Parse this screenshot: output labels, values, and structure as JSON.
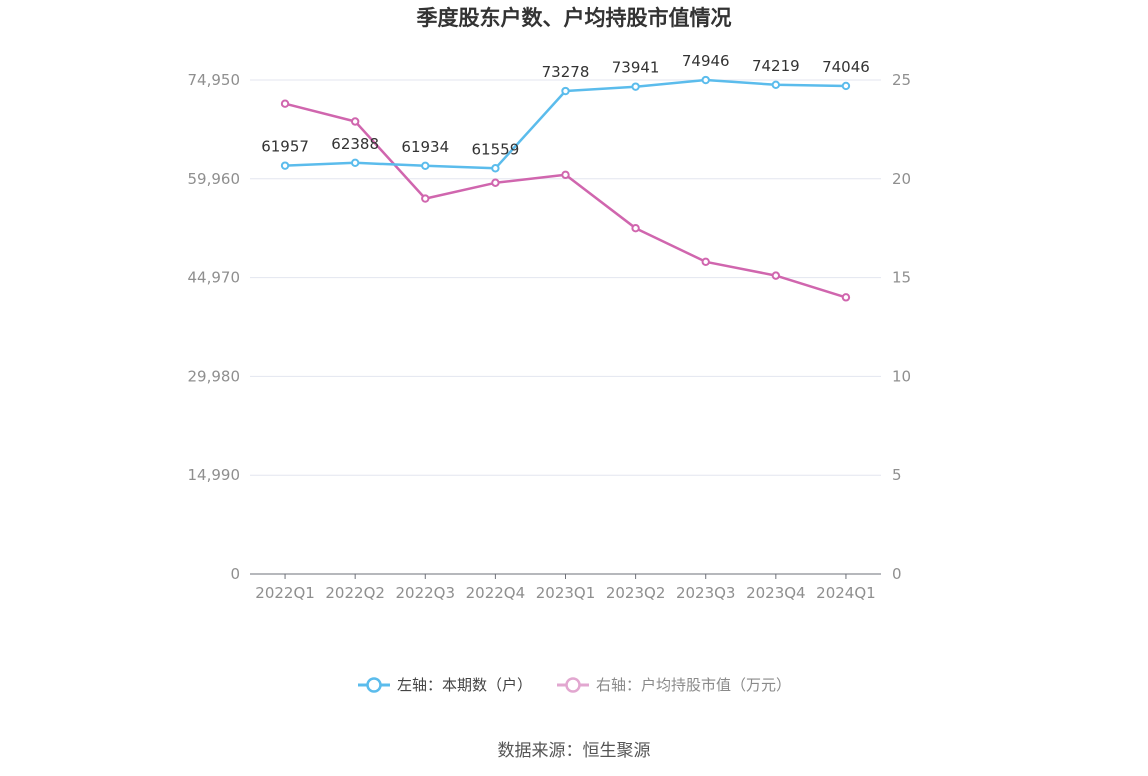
{
  "chart_data": {
    "type": "line",
    "title": "季度股东户数、户均持股市值情况",
    "categories": [
      "2022Q1",
      "2022Q2",
      "2022Q3",
      "2022Q4",
      "2023Q1",
      "2023Q2",
      "2023Q3",
      "2023Q4",
      "2024Q1"
    ],
    "series": [
      {
        "name": "左轴：本期数（户）",
        "axis": "left",
        "color": "#5bbcec",
        "values": [
          61957,
          62388,
          61934,
          61559,
          73278,
          73941,
          74946,
          74219,
          74046
        ],
        "data_labels": [
          "61957",
          "62388",
          "61934",
          "61559",
          "73278",
          "73941",
          "74946",
          "74219",
          "74046"
        ]
      },
      {
        "name": "右轴：户均持股市值（万元）",
        "axis": "right",
        "color": "#d066ae",
        "values": [
          23.8,
          22.9,
          19.0,
          19.8,
          20.2,
          17.5,
          15.8,
          15.1,
          14.0
        ]
      }
    ],
    "y_left": {
      "ylim": [
        0,
        74950
      ],
      "ticks": [
        0,
        14990,
        29980,
        44970,
        59960,
        74950
      ],
      "tick_labels": [
        "0",
        "14,990",
        "29,980",
        "44,970",
        "59,960",
        "74,950"
      ]
    },
    "y_right": {
      "ylim": [
        0,
        25
      ],
      "ticks": [
        0,
        5,
        10,
        15,
        20,
        25
      ],
      "tick_labels": [
        "0",
        "5",
        "10",
        "15",
        "20",
        "25"
      ]
    },
    "grid": true,
    "legend": "bottom-center"
  },
  "legend": {
    "left_label": "左轴：本期数（户）",
    "right_label": "右轴：户均持股市值（万元）"
  },
  "source": "数据来源：恒生聚源"
}
